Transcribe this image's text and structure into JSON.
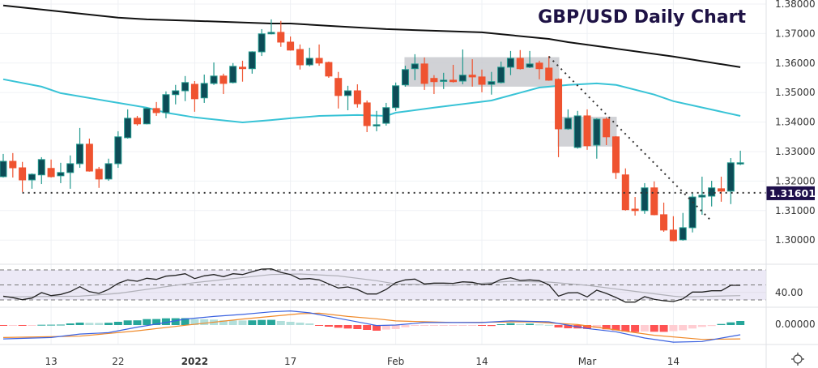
{
  "chart_data": {
    "type": "candlestick",
    "title": "GBP/USD Daily Chart",
    "colors": {
      "up_body": "#0d4c57",
      "up_line": "#22998e",
      "down": "#ef5330",
      "ma_long": "#111111",
      "ma_short": "#38c3d6",
      "title": "#1e1245",
      "level_label_bg": "#1e0f4b",
      "rsi": "#222222",
      "rsi_ma": "#b0b0b8",
      "rsi_band": "#ece9f6",
      "macd": "#3b62e0",
      "signal": "#f08a2a",
      "hist_up_grow": "#26a69a",
      "hist_up_fall": "#b2dfdb",
      "hist_down_grow": "#ff5252",
      "hist_down_fall": "#ffcdd2"
    },
    "price_axis": {
      "ylim": [
        1.2996,
        1.38
      ],
      "ticks": [
        "1.38000",
        "1.37000",
        "1.36000",
        "1.35000",
        "1.34000",
        "1.33000",
        "1.32000",
        "1.31000",
        "1.30000"
      ]
    },
    "time_axis": {
      "ticks": [
        {
          "date": "2021-12-13",
          "label": "13"
        },
        {
          "date": "2021-12-22",
          "label": "22"
        },
        {
          "date": "2022-01-03",
          "label": "2022",
          "bold": true
        },
        {
          "date": "2022-01-17",
          "label": "17"
        },
        {
          "date": "2022-02-01",
          "label": "Feb"
        },
        {
          "date": "2022-02-14",
          "label": "14"
        },
        {
          "date": "2022-03-01",
          "label": "Mar"
        },
        {
          "date": "2022-03-14",
          "label": "14"
        }
      ]
    },
    "candles_fields": [
      "date",
      "open",
      "high",
      "low",
      "close"
    ],
    "candles": [
      [
        "2021-12-06",
        1.3215,
        1.3292,
        1.3212,
        1.3267
      ],
      [
        "2021-12-07",
        1.3267,
        1.3295,
        1.3212,
        1.3245
      ],
      [
        "2021-12-08",
        1.3245,
        1.3265,
        1.3163,
        1.3204
      ],
      [
        "2021-12-09",
        1.3204,
        1.3226,
        1.3174,
        1.3223
      ],
      [
        "2021-12-10",
        1.3221,
        1.3281,
        1.319,
        1.3273
      ],
      [
        "2021-12-13",
        1.3243,
        1.3273,
        1.3212,
        1.3215
      ],
      [
        "2021-12-14",
        1.3218,
        1.3262,
        1.3193,
        1.3229
      ],
      [
        "2021-12-15",
        1.3229,
        1.3287,
        1.3174,
        1.3259
      ],
      [
        "2021-12-16",
        1.3259,
        1.338,
        1.3245,
        1.3325
      ],
      [
        "2021-12-17",
        1.3325,
        1.3344,
        1.3232,
        1.3234
      ],
      [
        "2021-12-20",
        1.324,
        1.3248,
        1.3177,
        1.3207
      ],
      [
        "2021-12-21",
        1.3207,
        1.3276,
        1.3201,
        1.3259
      ],
      [
        "2021-12-22",
        1.3259,
        1.3369,
        1.3245,
        1.335
      ],
      [
        "2021-12-23",
        1.3347,
        1.3443,
        1.3344,
        1.3413
      ],
      [
        "2021-12-24",
        1.3413,
        1.3421,
        1.3388,
        1.3394
      ],
      [
        "2021-12-27",
        1.3394,
        1.3449,
        1.3392,
        1.3446
      ],
      [
        "2021-12-28",
        1.3446,
        1.3468,
        1.3421,
        1.3432
      ],
      [
        "2021-12-29",
        1.3432,
        1.3504,
        1.3413,
        1.3493
      ],
      [
        "2021-12-30",
        1.3493,
        1.3526,
        1.346,
        1.3506
      ],
      [
        "2021-12-31",
        1.3506,
        1.3556,
        1.3471,
        1.3534
      ],
      [
        "2022-01-03",
        1.3528,
        1.3539,
        1.3435,
        1.3479
      ],
      [
        "2022-01-04",
        1.3482,
        1.3561,
        1.3465,
        1.3531
      ],
      [
        "2022-01-05",
        1.3531,
        1.3602,
        1.3526,
        1.3556
      ],
      [
        "2022-01-06",
        1.3556,
        1.3564,
        1.3495,
        1.3531
      ],
      [
        "2022-01-07",
        1.3534,
        1.36,
        1.3531,
        1.3589
      ],
      [
        "2022-01-10",
        1.3586,
        1.3608,
        1.3537,
        1.3581
      ],
      [
        "2022-01-11",
        1.3581,
        1.364,
        1.3564,
        1.3638
      ],
      [
        "2022-01-12",
        1.3638,
        1.3715,
        1.3624,
        1.3699
      ],
      [
        "2022-01-13",
        1.3699,
        1.3748,
        1.3697,
        1.3704
      ],
      [
        "2022-01-14",
        1.3704,
        1.3743,
        1.3655,
        1.3671
      ],
      [
        "2022-01-17",
        1.3671,
        1.369,
        1.3642,
        1.3644
      ],
      [
        "2022-01-18",
        1.3646,
        1.3663,
        1.3578,
        1.3594
      ],
      [
        "2022-01-19",
        1.3594,
        1.3652,
        1.3589,
        1.3616
      ],
      [
        "2022-01-20",
        1.3616,
        1.3663,
        1.3591,
        1.36
      ],
      [
        "2022-01-21",
        1.3602,
        1.3605,
        1.355,
        1.3556
      ],
      [
        "2022-01-24",
        1.3548,
        1.357,
        1.3446,
        1.349
      ],
      [
        "2022-01-25",
        1.349,
        1.3523,
        1.344,
        1.3506
      ],
      [
        "2022-01-26",
        1.3506,
        1.3528,
        1.3449,
        1.3462
      ],
      [
        "2022-01-27",
        1.3465,
        1.3473,
        1.3366,
        1.3388
      ],
      [
        "2022-01-28",
        1.3388,
        1.3438,
        1.3369,
        1.3391
      ],
      [
        "2022-01-31",
        1.3396,
        1.3465,
        1.3388,
        1.3449
      ],
      [
        "2022-02-01",
        1.3449,
        1.3534,
        1.3438,
        1.3523
      ],
      [
        "2022-02-02",
        1.3526,
        1.3591,
        1.352,
        1.3578
      ],
      [
        "2022-02-03",
        1.3581,
        1.363,
        1.3542,
        1.3597
      ],
      [
        "2022-02-04",
        1.3597,
        1.3619,
        1.3509,
        1.3531
      ],
      [
        "2022-02-07",
        1.3548,
        1.3559,
        1.3495,
        1.3537
      ],
      [
        "2022-02-08",
        1.3539,
        1.3567,
        1.3512,
        1.3542
      ],
      [
        "2022-02-09",
        1.3542,
        1.3594,
        1.3534,
        1.3537
      ],
      [
        "2022-02-10",
        1.3539,
        1.3646,
        1.3528,
        1.3559
      ],
      [
        "2022-02-11",
        1.3559,
        1.3613,
        1.352,
        1.3553
      ],
      [
        "2022-02-14",
        1.3553,
        1.3578,
        1.3501,
        1.3528
      ],
      [
        "2022-02-15",
        1.3528,
        1.357,
        1.3493,
        1.3537
      ],
      [
        "2022-02-16",
        1.3534,
        1.3605,
        1.3531,
        1.3586
      ],
      [
        "2022-02-17",
        1.3586,
        1.3641,
        1.3559,
        1.3616
      ],
      [
        "2022-02-18",
        1.3616,
        1.3644,
        1.3578,
        1.3581
      ],
      [
        "2022-02-21",
        1.3586,
        1.3641,
        1.3583,
        1.3597
      ],
      [
        "2022-02-22",
        1.36,
        1.3608,
        1.3545,
        1.3581
      ],
      [
        "2022-02-23",
        1.3583,
        1.3624,
        1.354,
        1.3542
      ],
      [
        "2022-02-24",
        1.3545,
        1.3548,
        1.3281,
        1.3377
      ],
      [
        "2022-02-25",
        1.3377,
        1.3443,
        1.3374,
        1.3413
      ],
      [
        "2022-02-28",
        1.3314,
        1.3438,
        1.331,
        1.3421
      ],
      [
        "2022-03-01",
        1.3421,
        1.3443,
        1.3306,
        1.332
      ],
      [
        "2022-03-02",
        1.3322,
        1.3413,
        1.3276,
        1.341
      ],
      [
        "2022-03-03",
        1.341,
        1.3416,
        1.3322,
        1.335
      ],
      [
        "2022-03-04",
        1.335,
        1.3352,
        1.3207,
        1.3229
      ],
      [
        "2022-03-07",
        1.3221,
        1.3243,
        1.31,
        1.3103
      ],
      [
        "2022-03-08",
        1.3105,
        1.3146,
        1.3083,
        1.31
      ],
      [
        "2022-03-09",
        1.31,
        1.3193,
        1.3089,
        1.3177
      ],
      [
        "2022-03-10",
        1.3177,
        1.3199,
        1.3084,
        1.3086
      ],
      [
        "2022-03-11",
        1.3086,
        1.3127,
        1.3028,
        1.3034
      ],
      [
        "2022-03-14",
        1.3034,
        1.3081,
        1.2996,
        1.2998
      ],
      [
        "2022-03-15",
        1.3001,
        1.3092,
        1.2998,
        1.3042
      ],
      [
        "2022-03-16",
        1.3042,
        1.316,
        1.3026,
        1.3146
      ],
      [
        "2022-03-17",
        1.3146,
        1.3215,
        1.3086,
        1.3152
      ],
      [
        "2022-03-18",
        1.3149,
        1.3201,
        1.3114,
        1.3177
      ],
      [
        "2022-03-21",
        1.3174,
        1.3215,
        1.313,
        1.3166
      ],
      [
        "2022-03-22",
        1.3166,
        1.3278,
        1.3122,
        1.3262
      ],
      [
        "2022-03-23",
        1.3259,
        1.3303,
        1.3254,
        1.3262
      ]
    ],
    "ma_long": [
      [
        "2021-12-06",
        1.3795
      ],
      [
        "2021-12-13",
        1.3778
      ],
      [
        "2021-12-22",
        1.3754
      ],
      [
        "2021-12-27",
        1.3748
      ],
      [
        "2022-01-03",
        1.3743
      ],
      [
        "2022-01-13",
        1.3734
      ],
      [
        "2022-01-17",
        1.3734
      ],
      [
        "2022-01-21",
        1.3726
      ],
      [
        "2022-01-31",
        1.3715
      ],
      [
        "2022-02-14",
        1.3704
      ],
      [
        "2022-02-23",
        1.3682
      ],
      [
        "2022-02-25",
        1.3671
      ],
      [
        "2022-03-04",
        1.3649
      ],
      [
        "2022-03-14",
        1.3622
      ],
      [
        "2022-03-23",
        1.3586
      ]
    ],
    "ma_short": [
      [
        "2021-12-06",
        1.3545
      ],
      [
        "2021-12-10",
        1.352
      ],
      [
        "2021-12-14",
        1.3498
      ],
      [
        "2021-12-22",
        1.3465
      ],
      [
        "2021-12-27",
        1.3449
      ],
      [
        "2021-12-29",
        1.3432
      ],
      [
        "2022-01-03",
        1.3416
      ],
      [
        "2022-01-10",
        1.3399
      ],
      [
        "2022-01-13",
        1.3407
      ],
      [
        "2022-01-17",
        1.3413
      ],
      [
        "2022-01-20",
        1.3421
      ],
      [
        "2022-01-26",
        1.3424
      ],
      [
        "2022-01-31",
        1.3421
      ],
      [
        "2022-02-01",
        1.3432
      ],
      [
        "2022-02-07",
        1.3449
      ],
      [
        "2022-02-15",
        1.3473
      ],
      [
        "2022-02-22",
        1.3517
      ],
      [
        "2022-02-25",
        1.3526
      ],
      [
        "2022-03-02",
        1.3531
      ],
      [
        "2022-03-04",
        1.3526
      ],
      [
        "2022-03-10",
        1.3493
      ],
      [
        "2022-03-14",
        1.3471
      ],
      [
        "2022-03-23",
        1.3421
      ]
    ],
    "support_level": {
      "value": 1.31601,
      "label": "1.31601",
      "from": "2021-12-08"
    },
    "trendline": {
      "from": [
        "2022-02-23",
        1.3622
      ],
      "to": [
        "2022-03-18",
        1.3064
      ]
    },
    "ranges": [
      {
        "from": "2022-02-02",
        "to": "2022-02-24",
        "low": 1.352,
        "high": 1.362
      },
      {
        "from": "2022-02-24",
        "to": "2022-03-04",
        "low": 1.3317,
        "high": 1.3418
      }
    ],
    "rsi": {
      "ylim": [
        26,
        76
      ],
      "levels": [
        70,
        50,
        30
      ],
      "tick": {
        "value": 40,
        "label": "40.00"
      },
      "values": [
        35,
        33,
        30.3,
        32.5,
        39.7,
        35.7,
        37.2,
        41,
        47.6,
        41,
        38.6,
        44,
        52,
        56.7,
        54.9,
        58.9,
        57.4,
        61.7,
        62.8,
        64.9,
        58.4,
        62.1,
        63.8,
        61,
        64.9,
        63.8,
        67.5,
        71.1,
        71.4,
        66.8,
        63.8,
        57.8,
        58.4,
        56.7,
        51.3,
        45.9,
        47.3,
        44,
        37.9,
        37.9,
        44,
        53,
        56.7,
        57.8,
        51.3,
        52.4,
        52.4,
        52,
        54.1,
        53.5,
        50.5,
        51.3,
        57.4,
        59.5,
        55.9,
        56.7,
        55.6,
        50.2,
        35,
        39.4,
        39.7,
        34,
        43,
        38.6,
        33.2,
        27.1,
        27.1,
        34.3,
        30.8,
        28.9,
        27.8,
        31.4,
        40.5,
        40.5,
        42.2,
        42.2,
        49.5,
        49.5
      ],
      "ma": [
        [
          "2021-12-06",
          34
        ],
        [
          "2021-12-16",
          35
        ],
        [
          "2021-12-22",
          38.6
        ],
        [
          "2022-01-03",
          53
        ],
        [
          "2022-01-13",
          63.8
        ],
        [
          "2022-01-18",
          64.6
        ],
        [
          "2022-01-24",
          62
        ],
        [
          "2022-01-28",
          55.6
        ],
        [
          "2022-02-01",
          51.3
        ],
        [
          "2022-02-09",
          49.5
        ],
        [
          "2022-02-17",
          54.9
        ],
        [
          "2022-02-23",
          53.8
        ],
        [
          "2022-03-01",
          49.5
        ],
        [
          "2022-03-07",
          43
        ],
        [
          "2022-03-14",
          35
        ],
        [
          "2022-03-15",
          34
        ],
        [
          "2022-03-23",
          35.7
        ]
      ]
    },
    "macd": {
      "ylim": [
        -0.0084,
        0.0077
      ],
      "tick": {
        "value": 0,
        "label": "0.00000"
      },
      "histogram": [
        -0.00011,
        -7e-05,
        -0.00021,
        -0.00011,
        0.00011,
        0.00014,
        0.00018,
        0.0007,
        0.00105,
        0.00095,
        0.00091,
        0.00098,
        0.0014,
        0.002,
        0.00203,
        0.00256,
        0.00259,
        0.0029,
        0.00294,
        0.00298,
        0.00256,
        0.00252,
        0.00235,
        0.00203,
        0.002,
        0.00196,
        0.00203,
        0.0022,
        0.00224,
        0.00175,
        0.0014,
        0.00105,
        0.0007,
        -0.00018,
        -0.0007,
        -0.00116,
        -0.00151,
        -0.00175,
        -0.0021,
        -0.00245,
        -0.00196,
        -0.00175,
        -0.00095,
        -0.00035,
        -0.00028,
        -0.00021,
        -0.00018,
        -0.00014,
        -7e-05,
        -4e-05,
        -0.00021,
        -0.00042,
        0.00035,
        0.0008,
        0.00046,
        0.0006,
        0.00025,
        7e-05,
        -0.00105,
        -0.0014,
        -0.00147,
        -0.00168,
        -0.0013,
        -0.00186,
        -0.00228,
        -0.0028,
        -0.00305,
        -0.0028,
        -0.0029,
        -0.00294,
        -0.00263,
        -0.00228,
        -0.0015,
        -0.0008,
        -0.00042,
        0.00046,
        0.00116,
        0.00175
      ],
      "macd_line": [
        [
          "2021-12-06",
          -0.006
        ],
        [
          "2021-12-13",
          -0.0054
        ],
        [
          "2021-12-16",
          -0.0039
        ],
        [
          "2021-12-21",
          -0.0033
        ],
        [
          "2021-12-24",
          -0.0009
        ],
        [
          "2021-12-29",
          0.0011
        ],
        [
          "2021-12-31",
          0.0026
        ],
        [
          "2022-01-05",
          0.0037
        ],
        [
          "2022-01-10",
          0.0046
        ],
        [
          "2022-01-13",
          0.0057
        ],
        [
          "2022-01-17",
          0.0061
        ],
        [
          "2022-01-19",
          0.0053
        ],
        [
          "2022-01-24",
          0.0029
        ],
        [
          "2022-01-27",
          0.0006
        ],
        [
          "2022-01-28",
          -0.0002
        ],
        [
          "2022-02-01",
          0.0
        ],
        [
          "2022-02-04",
          0.0011
        ],
        [
          "2022-02-14",
          0.0011
        ],
        [
          "2022-02-17",
          0.0018
        ],
        [
          "2022-02-23",
          0.0014
        ],
        [
          "2022-03-01",
          -0.0015
        ],
        [
          "2022-03-04",
          -0.0029
        ],
        [
          "2022-03-09",
          -0.0056
        ],
        [
          "2022-03-14",
          -0.0074
        ],
        [
          "2022-03-17",
          -0.0071
        ],
        [
          "2022-03-23",
          -0.0042
        ]
      ],
      "signal_line": [
        [
          "2021-12-06",
          -0.0054
        ],
        [
          "2021-12-16",
          -0.0048
        ],
        [
          "2021-12-24",
          -0.0025
        ],
        [
          "2021-12-31",
          -0.0001
        ],
        [
          "2022-01-10",
          0.0026
        ],
        [
          "2022-01-18",
          0.0049
        ],
        [
          "2022-01-20",
          0.0051
        ],
        [
          "2022-01-25",
          0.0037
        ],
        [
          "2022-01-28",
          0.0027
        ],
        [
          "2022-02-01",
          0.0018
        ],
        [
          "2022-02-09",
          0.0011
        ],
        [
          "2022-02-21",
          0.0014
        ],
        [
          "2022-02-28",
          0.0002
        ],
        [
          "2022-03-04",
          -0.0021
        ],
        [
          "2022-03-10",
          -0.0044
        ],
        [
          "2022-03-17",
          -0.0062
        ],
        [
          "2022-03-23",
          -0.006
        ]
      ]
    }
  },
  "toolbar": {
    "settings_icon": "gear-icon"
  }
}
